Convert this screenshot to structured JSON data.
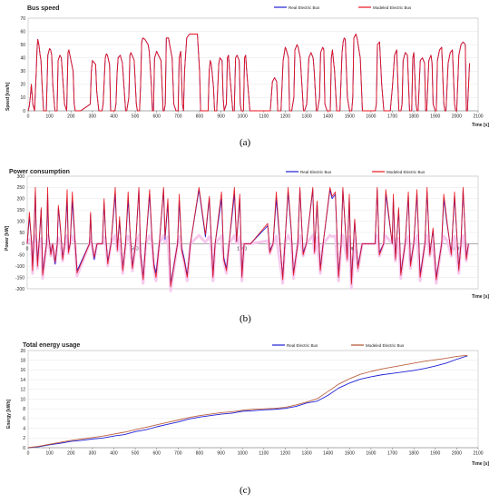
{
  "captions": [
    "(a)",
    "(b)",
    "(c)"
  ],
  "colors": {
    "real": "#1f1fd6",
    "modeled": "#e8141c",
    "modeled_shade": "#f6c9ee",
    "energy_modeled": "#b4512c"
  },
  "chart_data": [
    {
      "type": "line",
      "title": "Bus speed",
      "xlabel": "Time [s]",
      "ylabel": "Speed [km/h]",
      "xlim": [
        0,
        2100
      ],
      "ylim": [
        0,
        70
      ],
      "xticks": [
        0,
        100,
        200,
        300,
        400,
        500,
        600,
        700,
        800,
        900,
        1000,
        1100,
        1200,
        1300,
        1400,
        1500,
        1600,
        1700,
        1800,
        1900,
        2000,
        2100
      ],
      "yticks": [
        0,
        10,
        20,
        30,
        40,
        50,
        60,
        70
      ],
      "legend_position": "top-right",
      "grid": true,
      "series": [
        {
          "name": "Real Electric Bus",
          "color": "#1f1fd6"
        },
        {
          "name": "Modeled Electric Bus",
          "color": "#e8141c"
        }
      ],
      "x": [
        0,
        5,
        10,
        15,
        22,
        30,
        38,
        42,
        45,
        50,
        56,
        60,
        65,
        72,
        85,
        92,
        100,
        105,
        110,
        115,
        125,
        135,
        140,
        148,
        155,
        160,
        170,
        180,
        186,
        190,
        195,
        210,
        215,
        220,
        225,
        233,
        245,
        290,
        295,
        300,
        310,
        315,
        320,
        330,
        345,
        350,
        360,
        365,
        370,
        380,
        385,
        395,
        405,
        410,
        415,
        420,
        430,
        440,
        455,
        460,
        470,
        475,
        480,
        485,
        495,
        505,
        510,
        520,
        525,
        530,
        535,
        545,
        560,
        565,
        575,
        580,
        585,
        590,
        600,
        605,
        620,
        630,
        635,
        640,
        645,
        655,
        665,
        672,
        680,
        690,
        700,
        705,
        712,
        720,
        725,
        730,
        740,
        748,
        755,
        770,
        790,
        800,
        805,
        818,
        830,
        840,
        845,
        850,
        855,
        865,
        870,
        875,
        880,
        890,
        895,
        905,
        910,
        915,
        925,
        930,
        935,
        940,
        955,
        962,
        968,
        975,
        985,
        990,
        995,
        1005,
        1010,
        1015,
        1020,
        1035,
        1045,
        1120,
        1125,
        1130,
        1140,
        1150,
        1160,
        1165,
        1170,
        1180,
        1190,
        1200,
        1205,
        1215,
        1220,
        1230,
        1240,
        1245,
        1255,
        1260,
        1270,
        1285,
        1290,
        1300,
        1310,
        1320,
        1330,
        1335,
        1345,
        1350,
        1360,
        1365,
        1375,
        1380,
        1385,
        1395,
        1410,
        1415,
        1420,
        1430,
        1440,
        1445,
        1455,
        1465,
        1470,
        1475,
        1480,
        1490,
        1500,
        1510,
        1515,
        1520,
        1530,
        1535,
        1540,
        1550,
        1560,
        1620,
        1625,
        1630,
        1640,
        1650,
        1660,
        1665,
        1670,
        1680,
        1690,
        1700,
        1705,
        1710,
        1720,
        1730,
        1740,
        1745,
        1750,
        1760,
        1770,
        1780,
        1790,
        1795,
        1800,
        1810,
        1815,
        1820,
        1830,
        1840,
        1850,
        1855,
        1860,
        1870,
        1880,
        1885,
        1890,
        1900,
        1905,
        1910,
        1920,
        1930,
        1940,
        1945,
        1950,
        1960,
        1970,
        1980,
        1990,
        1995,
        2000,
        2010,
        2020,
        2030,
        2040,
        2045,
        2050,
        2060
      ],
      "real_speed": [
        0,
        3,
        10,
        20,
        5,
        0,
        30,
        48,
        54,
        50,
        42,
        38,
        20,
        0,
        0,
        42,
        47,
        46,
        42,
        20,
        0,
        0,
        38,
        42,
        40,
        28,
        5,
        0,
        44,
        46,
        42,
        30,
        5,
        0,
        0,
        0,
        0,
        5,
        30,
        38,
        36,
        35,
        15,
        0,
        0,
        5,
        40,
        43,
        42,
        35,
        0,
        0,
        0,
        5,
        28,
        40,
        42,
        36,
        0,
        0,
        10,
        42,
        44,
        42,
        38,
        5,
        0,
        0,
        20,
        52,
        55,
        54,
        50,
        45,
        20,
        0,
        0,
        40,
        45,
        43,
        38,
        0,
        0,
        5,
        55,
        55,
        46,
        40,
        5,
        0,
        0,
        40,
        45,
        5,
        0,
        30,
        55,
        57,
        58,
        58,
        58,
        30,
        0,
        0,
        0,
        0,
        30,
        38,
        35,
        18,
        0,
        0,
        0,
        36,
        40,
        38,
        10,
        0,
        5,
        40,
        42,
        30,
        0,
        0,
        40,
        42,
        38,
        5,
        0,
        0,
        40,
        42,
        30,
        0,
        0,
        0,
        0,
        0,
        22,
        25,
        22,
        0,
        0,
        0,
        38,
        48,
        46,
        40,
        0,
        0,
        10,
        46,
        50,
        48,
        40,
        0,
        0,
        5,
        40,
        44,
        40,
        30,
        0,
        0,
        10,
        44,
        48,
        46,
        5,
        0,
        0,
        40,
        46,
        30,
        0,
        0,
        0,
        44,
        52,
        55,
        54,
        10,
        0,
        0,
        10,
        55,
        58,
        55,
        50,
        40,
        0,
        0,
        5,
        50,
        52,
        20,
        0,
        0,
        0,
        0,
        0,
        18,
        30,
        42,
        46,
        0,
        0,
        5,
        38,
        44,
        42,
        0,
        0,
        40,
        44,
        5,
        0,
        0,
        38,
        40,
        36,
        0,
        0,
        38,
        42,
        36,
        5,
        0,
        0,
        38,
        46,
        48,
        5,
        0,
        0,
        36,
        44,
        46,
        5,
        0,
        0,
        42,
        50,
        52,
        50,
        0,
        0,
        36,
        38,
        10,
        0,
        20,
        18,
        0,
        0
      ],
      "modeled_speed": [
        0,
        3,
        10,
        20,
        5,
        0,
        30,
        48,
        54,
        50,
        42,
        38,
        20,
        0,
        0,
        42,
        47,
        46,
        42,
        20,
        0,
        0,
        38,
        42,
        40,
        28,
        5,
        0,
        44,
        46,
        42,
        30,
        5,
        0,
        0,
        0,
        0,
        5,
        30,
        38,
        36,
        35,
        15,
        0,
        0,
        5,
        40,
        43,
        42,
        35,
        0,
        0,
        0,
        5,
        28,
        40,
        42,
        36,
        0,
        0,
        10,
        42,
        44,
        42,
        38,
        5,
        0,
        0,
        20,
        52,
        55,
        54,
        50,
        45,
        20,
        0,
        0,
        40,
        45,
        43,
        38,
        0,
        0,
        5,
        55,
        55,
        46,
        40,
        5,
        0,
        0,
        40,
        45,
        5,
        0,
        30,
        55,
        57,
        58,
        58,
        58,
        30,
        0,
        0,
        0,
        0,
        30,
        38,
        35,
        18,
        0,
        0,
        0,
        36,
        40,
        38,
        10,
        0,
        5,
        40,
        42,
        30,
        0,
        0,
        40,
        42,
        38,
        5,
        0,
        0,
        40,
        42,
        30,
        0,
        0,
        0,
        0,
        0,
        22,
        25,
        22,
        0,
        0,
        0,
        38,
        48,
        46,
        40,
        0,
        0,
        10,
        46,
        50,
        48,
        40,
        0,
        0,
        5,
        40,
        44,
        40,
        30,
        0,
        0,
        10,
        44,
        48,
        46,
        5,
        0,
        0,
        40,
        46,
        30,
        0,
        0,
        0,
        44,
        52,
        55,
        54,
        10,
        0,
        0,
        10,
        55,
        58,
        55,
        50,
        40,
        0,
        0,
        5,
        50,
        52,
        20,
        0,
        0,
        0,
        0,
        0,
        18,
        30,
        42,
        46,
        0,
        0,
        5,
        38,
        44,
        42,
        0,
        0,
        40,
        44,
        5,
        0,
        0,
        38,
        40,
        36,
        0,
        0,
        38,
        42,
        36,
        5,
        0,
        0,
        38,
        46,
        48,
        5,
        0,
        0,
        36,
        44,
        46,
        5,
        0,
        0,
        42,
        50,
        52,
        50,
        0,
        0,
        36,
        38,
        10,
        0,
        20,
        18,
        0,
        0
      ]
    },
    {
      "type": "line",
      "title": "Power consumption",
      "xlabel": "Time [s]",
      "ylabel": "Power [kW]",
      "xlim": [
        0,
        2100
      ],
      "ylim": [
        -200,
        300
      ],
      "yticks": [
        -200,
        -150,
        -100,
        -50,
        0,
        50,
        100,
        150,
        200,
        250,
        300
      ],
      "xticks_on_zero_line": [
        "0",
        "500",
        "1000",
        "1500",
        "2000"
      ],
      "legend_position": "top-right",
      "grid": true,
      "series": [
        {
          "name": "Real Electric Bus",
          "color": "#1f1fd6"
        },
        {
          "name": "Modeled Electric Bus",
          "color": "#e8141c"
        }
      ],
      "x": [
        0,
        10,
        20,
        25,
        30,
        38,
        42,
        48,
        55,
        65,
        72,
        90,
        95,
        100,
        110,
        118,
        130,
        140,
        145,
        155,
        165,
        175,
        186,
        192,
        200,
        210,
        222,
        232,
        290,
        295,
        300,
        312,
        325,
        350,
        358,
        365,
        375,
        390,
        410,
        420,
        430,
        445,
        458,
        470,
        478,
        490,
        505,
        520,
        528,
        540,
        552,
        570,
        580,
        590,
        600,
        615,
        635,
        642,
        655,
        668,
        700,
        708,
        720,
        732,
        745,
        760,
        800,
        830,
        848,
        855,
        865,
        875,
        905,
        915,
        928,
        940,
        965,
        975,
        990,
        1000,
        1010,
        1020,
        1040,
        1120,
        1130,
        1145,
        1160,
        1190,
        1200,
        1215,
        1230,
        1240,
        1260,
        1270,
        1285,
        1300,
        1330,
        1338,
        1350,
        1365,
        1378,
        1410,
        1420,
        1435,
        1450,
        1462,
        1470,
        1490,
        1500,
        1510,
        1525,
        1540,
        1560,
        1620,
        1630,
        1640,
        1660,
        1670,
        1700,
        1705,
        1715,
        1730,
        1740,
        1760,
        1775,
        1785,
        1800,
        1815,
        1830,
        1852,
        1862,
        1875,
        1890,
        1905,
        1930,
        1940,
        1955,
        1975,
        1990,
        2010,
        2020,
        2030,
        2045,
        2055
      ],
      "real_power": [
        0,
        120,
        10,
        -100,
        0,
        230,
        40,
        -80,
        0,
        150,
        -130,
        0,
        220,
        30,
        -40,
        0,
        -90,
        0,
        160,
        60,
        -60,
        0,
        200,
        -30,
        0,
        190,
        20,
        -120,
        0,
        130,
        10,
        -70,
        0,
        0,
        180,
        40,
        -80,
        0,
        220,
        -20,
        100,
        -110,
        0,
        200,
        60,
        -100,
        0,
        240,
        -40,
        -150,
        0,
        220,
        40,
        -90,
        -130,
        0,
        240,
        20,
        180,
        -180,
        0,
        190,
        -20,
        -70,
        -140,
        0,
        240,
        30,
        200,
        60,
        -140,
        0,
        200,
        -60,
        -110,
        0,
        220,
        10,
        200,
        -140,
        0,
        0,
        0,
        80,
        -30,
        0,
        200,
        -150,
        0,
        230,
        50,
        -130,
        0,
        240,
        -40,
        0,
        240,
        -30,
        180,
        -110,
        0,
        240,
        200,
        220,
        -140,
        0,
        240,
        -60,
        200,
        -170,
        100,
        -100,
        0,
        0,
        240,
        -40,
        0,
        220,
        0,
        200,
        -60,
        150,
        -130,
        0,
        210,
        -90,
        0,
        220,
        -140,
        0,
        230,
        -40,
        60,
        -150,
        0,
        200,
        90,
        -40,
        210,
        -110,
        0,
        240,
        -60,
        0,
        0
      ],
      "modeled_power": [
        0,
        140,
        10,
        -120,
        0,
        250,
        50,
        -100,
        0,
        160,
        -140,
        0,
        250,
        40,
        -50,
        0,
        -80,
        0,
        170,
        70,
        -70,
        0,
        240,
        -40,
        0,
        230,
        30,
        -130,
        0,
        140,
        10,
        -60,
        0,
        0,
        200,
        50,
        -90,
        0,
        250,
        -30,
        120,
        -120,
        0,
        230,
        70,
        -110,
        0,
        250,
        -50,
        -160,
        0,
        240,
        50,
        -100,
        -150,
        0,
        250,
        30,
        200,
        -190,
        0,
        220,
        -30,
        -80,
        -150,
        0,
        250,
        40,
        210,
        70,
        -150,
        0,
        230,
        -70,
        -120,
        0,
        250,
        10,
        220,
        -150,
        0,
        0,
        0,
        90,
        -40,
        0,
        230,
        -160,
        0,
        250,
        60,
        -140,
        0,
        250,
        -50,
        0,
        250,
        -40,
        190,
        -120,
        0,
        250,
        210,
        230,
        -150,
        0,
        250,
        -70,
        220,
        -180,
        110,
        -110,
        0,
        0,
        250,
        -50,
        0,
        240,
        0,
        220,
        -70,
        160,
        -140,
        0,
        230,
        -100,
        0,
        240,
        -150,
        0,
        250,
        -50,
        70,
        -160,
        0,
        220,
        100,
        -50,
        230,
        -120,
        0,
        250,
        -70,
        0,
        0
      ]
    },
    {
      "type": "line",
      "title": "Total energy usage",
      "xlabel": "Time [s]",
      "ylabel": "Energy [kWh]",
      "xlim": [
        0,
        2100
      ],
      "ylim": [
        0,
        20
      ],
      "xticks": [
        0,
        100,
        200,
        300,
        400,
        500,
        600,
        700,
        800,
        900,
        1000,
        1100,
        1200,
        1300,
        1400,
        1500,
        1600,
        1700,
        1800,
        1900,
        2000,
        2100
      ],
      "yticks": [
        0,
        2,
        4,
        6,
        8,
        10,
        12,
        14,
        16,
        18,
        20
      ],
      "legend_position": "top-right",
      "grid": true,
      "series": [
        {
          "name": "Real Electric Bus",
          "color": "#1f1fd6"
        },
        {
          "name": "Modeled Electric Bus",
          "color": "#b4512c"
        }
      ],
      "x": [
        0,
        50,
        100,
        150,
        200,
        250,
        300,
        350,
        400,
        450,
        500,
        550,
        600,
        650,
        700,
        750,
        800,
        850,
        900,
        950,
        1000,
        1050,
        1100,
        1150,
        1200,
        1250,
        1300,
        1350,
        1400,
        1450,
        1500,
        1550,
        1600,
        1650,
        1700,
        1750,
        1800,
        1850,
        1900,
        1950,
        2000,
        2050
      ],
      "real_energy": [
        0,
        0.2,
        0.6,
        0.9,
        1.3,
        1.5,
        1.8,
        2.0,
        2.4,
        2.7,
        3.3,
        3.7,
        4.3,
        4.8,
        5.3,
        5.9,
        6.3,
        6.6,
        6.9,
        7.1,
        7.5,
        7.6,
        7.8,
        7.9,
        8.1,
        8.5,
        9.2,
        9.6,
        10.8,
        12.3,
        13.3,
        14.1,
        14.6,
        15.0,
        15.3,
        15.6,
        15.9,
        16.3,
        16.8,
        17.4,
        18.2,
        18.9
      ],
      "modeled_energy": [
        0,
        0.3,
        0.7,
        1.1,
        1.5,
        1.8,
        2.1,
        2.4,
        2.8,
        3.2,
        3.7,
        4.2,
        4.7,
        5.2,
        5.7,
        6.2,
        6.6,
        6.9,
        7.2,
        7.4,
        7.7,
        7.9,
        8.0,
        8.1,
        8.3,
        8.8,
        9.4,
        10.1,
        11.6,
        13.1,
        14.2,
        15.1,
        15.7,
        16.2,
        16.6,
        17.0,
        17.4,
        17.8,
        18.1,
        18.4,
        18.8,
        19.0
      ]
    }
  ]
}
